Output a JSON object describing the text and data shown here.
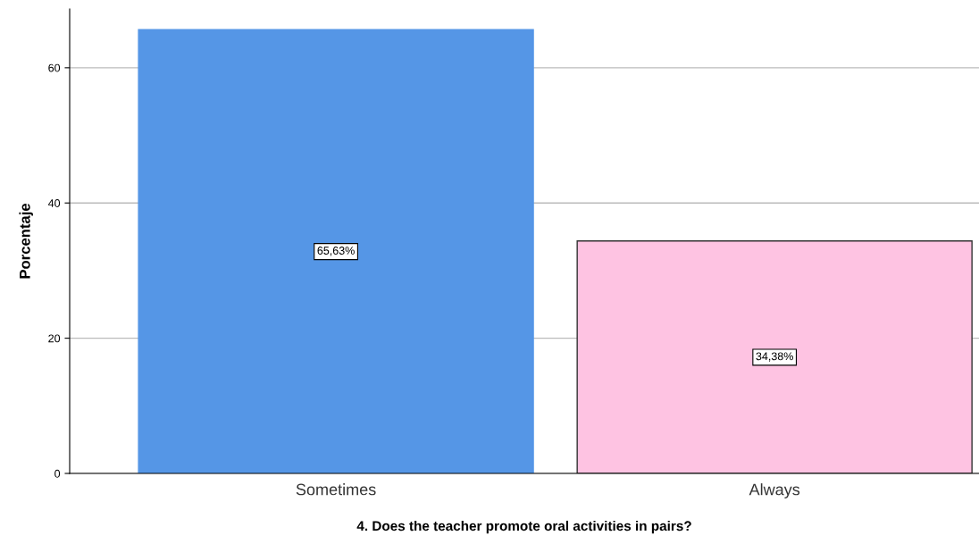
{
  "chart_data": {
    "type": "bar",
    "xlabel": "4. Does the teacher promote oral activities in pairs?",
    "ylabel": "Porcentaje",
    "categories": [
      "Sometimes",
      "Always"
    ],
    "values": [
      65.63,
      34.38
    ],
    "value_labels": [
      "65,63%",
      "34,38%"
    ],
    "colors": [
      "#5596e6",
      "#fec3e2"
    ],
    "ylim": [
      0,
      68.7
    ],
    "yticks": [
      0,
      20,
      40,
      60
    ],
    "grid": "y",
    "legend": false
  }
}
